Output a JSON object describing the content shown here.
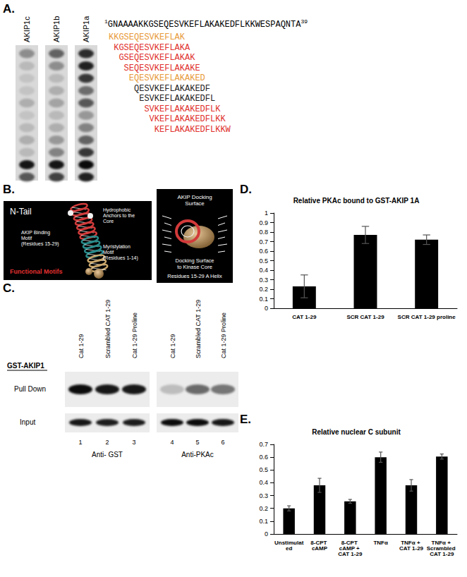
{
  "panels": {
    "A": {
      "panel_label": "A.",
      "lanes": [
        {
          "name": "AKIP1c",
          "spots": [
            0.35,
            0.15,
            0.1,
            0.1,
            0.2,
            0.1,
            0.15,
            0.2,
            0.15,
            0.9,
            0.6
          ]
        },
        {
          "name": "AKIP1b",
          "spots": [
            0.55,
            0.35,
            0.15,
            0.2,
            0.25,
            0.15,
            0.2,
            0.3,
            0.4,
            0.9,
            0.7
          ]
        },
        {
          "name": "AKIP1a",
          "spots": [
            0.8,
            0.85,
            0.75,
            0.5,
            0.6,
            0.3,
            0.4,
            0.55,
            0.75,
            0.95,
            0.85
          ]
        }
      ],
      "sequence": {
        "start": "1",
        "residues": "GNAAAAKKGSEQESVKEFLAKAKEDFLKKWESPAQNTA",
        "end": "39"
      },
      "peptides": [
        {
          "text": "KKGSEQESVKEFLAK",
          "color": "#e89a3a"
        },
        {
          "text": "KGSEQESVKEFLAKA",
          "color": "#e0302c"
        },
        {
          "text": "GSEQESVKEFLAKAK",
          "color": "#e0302c"
        },
        {
          "text": "SEQESVKEFLAKAKE",
          "color": "#e0302c"
        },
        {
          "text": "EQESVKEFLAKAKED",
          "color": "#e89a3a"
        },
        {
          "text": "QESVKEFLAKAKEDF",
          "color": "#222222"
        },
        {
          "text": "ESVKEFLAKAKEDFL",
          "color": "#222222"
        },
        {
          "text": "SVKEFLAKAKEDFLK",
          "color": "#e0302c"
        },
        {
          "text": "VKEFLAKAKEDFLKK",
          "color": "#e0302c"
        },
        {
          "text": "KEFLAKAKEDFLKKW",
          "color": "#e0302c"
        }
      ]
    },
    "B": {
      "panel_label": "B.",
      "left": {
        "title": "N-Tail",
        "anchors": [
          "Hydrophobic",
          "Anchors to the",
          "Core"
        ],
        "binding": [
          "AKIP Binding",
          "Motif",
          "(Residues 15-29)"
        ],
        "myristylation": [
          "Myristylation",
          "Motif",
          "(Residues 1-14)"
        ],
        "functional": "Functional Motifs"
      },
      "right": {
        "title": [
          "AKIP Docking",
          "Surface"
        ],
        "docking": [
          "Docking Surface",
          "to Kinase Core"
        ],
        "helix": "Residues 15-29 A Helix"
      }
    },
    "C": {
      "panel_label": "C.",
      "bait": "GST-AKIP1",
      "rows": [
        "Pull Down",
        "Input"
      ],
      "blots": [
        {
          "antibody": "Anti- GST",
          "lanes": [
            {
              "number": "1",
              "label": "Cat 1-29"
            },
            {
              "number": "2",
              "label": "Scrambled CAT 1-29"
            },
            {
              "number": "3",
              "label": "Cat 1-29 Proline"
            }
          ],
          "pull_down": [
            0.95,
            0.9,
            0.9
          ],
          "input": [
            0.9,
            0.88,
            0.88
          ]
        },
        {
          "antibody": "Anti-PKAc",
          "lanes": [
            {
              "number": "4",
              "label": "Cat 1-29"
            },
            {
              "number": "5",
              "label": "Scrambled CAT 1-29"
            },
            {
              "number": "6",
              "label": "Cat 1-29 Proline"
            }
          ],
          "pull_down": [
            0.2,
            0.55,
            0.5
          ],
          "input": [
            0.95,
            0.95,
            0.9
          ]
        }
      ]
    }
  },
  "chart_data": [
    {
      "panel_label": "D.",
      "type": "bar",
      "title": "Relative PKAc bound to GST-AKIP 1A",
      "categories": [
        "CAT 1-29",
        "SCR CAT 1-29",
        "SCR CAT 1-29 proline"
      ],
      "values": [
        0.23,
        0.77,
        0.72
      ],
      "errors": [
        0.12,
        0.09,
        0.05
      ],
      "color": "#000000",
      "ylim": [
        0,
        1
      ],
      "yticks": [
        0,
        0.1,
        0.2,
        0.3,
        0.4,
        0.5,
        0.6,
        0.7,
        0.8,
        0.9,
        1
      ],
      "grid": false
    },
    {
      "panel_label": "E.",
      "type": "bar",
      "title": "Relative nuclear C subunit",
      "categories": [
        "Unstimulated",
        "8-CPT cAMP",
        "8-CPT cAMP + CAT 1-29",
        "TNFα",
        "TNFα + CAT 1-29",
        "TNFα + Scrambled CAT 1-29"
      ],
      "values": [
        0.2,
        0.38,
        0.255,
        0.6,
        0.38,
        0.605
      ],
      "errors": [
        0.02,
        0.055,
        0.015,
        0.04,
        0.045,
        0.02
      ],
      "color": "#000000",
      "ylim": [
        0,
        0.7
      ],
      "yticks": [
        0,
        0.1,
        0.2,
        0.3,
        0.4,
        0.5,
        0.6,
        0.7
      ],
      "grid": false
    }
  ]
}
